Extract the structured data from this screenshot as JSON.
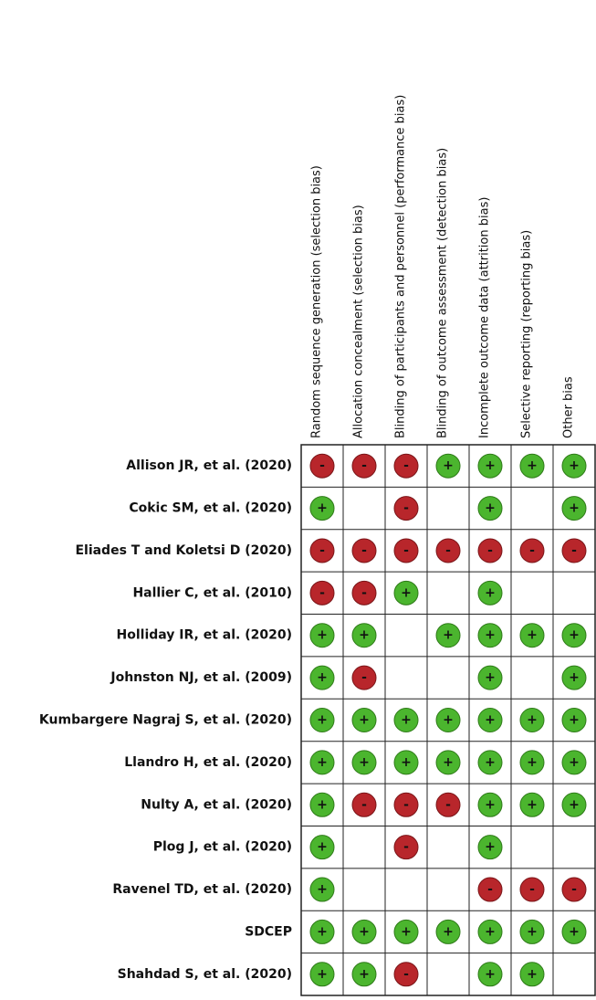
{
  "table": {
    "columns": [
      "Random sequence generation (selection bias)",
      "Allocation concealment (selection bias)",
      "Blinding of participants and personnel (performance bias)",
      "Blinding of outcome assessment (detection bias)",
      "Incomplete outcome data (attrition bias)",
      "Selective reporting (reporting bias)",
      "Other bias"
    ],
    "rows": [
      {
        "study": "Allison JR, et al. (2020)",
        "cells": [
          "-",
          "-",
          "-",
          "+",
          "+",
          "+",
          "+"
        ]
      },
      {
        "study": "Cokic SM, et al. (2020)",
        "cells": [
          "+",
          null,
          "-",
          null,
          "+",
          null,
          "+"
        ]
      },
      {
        "study": "Eliades T and Koletsi D (2020)",
        "cells": [
          "-",
          "-",
          "-",
          "-",
          "-",
          "-",
          "-"
        ]
      },
      {
        "study": "Hallier C, et al. (2010)",
        "cells": [
          "-",
          "-",
          "+",
          null,
          "+",
          null,
          null
        ]
      },
      {
        "study": "Holliday IR, et al. (2020)",
        "cells": [
          "+",
          "+",
          null,
          "+",
          "+",
          "+",
          "+"
        ]
      },
      {
        "study": "Johnston NJ, et al. (2009)",
        "cells": [
          "+",
          "-",
          null,
          null,
          "+",
          null,
          "+"
        ]
      },
      {
        "study": "Kumbargere Nagraj S, et al. (2020)",
        "cells": [
          "+",
          "+",
          "+",
          "+",
          "+",
          "+",
          "+"
        ]
      },
      {
        "study": "Llandro H, et al. (2020)",
        "cells": [
          "+",
          "+",
          "+",
          "+",
          "+",
          "+",
          "+"
        ]
      },
      {
        "study": "Nulty A, et al. (2020)",
        "cells": [
          "+",
          "-",
          "-",
          "-",
          "+",
          "+",
          "+"
        ]
      },
      {
        "study": "Plog J, et al. (2020)",
        "cells": [
          "+",
          null,
          "-",
          null,
          "+",
          null,
          null
        ]
      },
      {
        "study": "Ravenel TD, et al. (2020)",
        "cells": [
          "+",
          null,
          null,
          null,
          "-",
          "-",
          "-"
        ]
      },
      {
        "study": "SDCEP",
        "cells": [
          "+",
          "+",
          "+",
          "+",
          "+",
          "+",
          "+"
        ]
      },
      {
        "study": "Shahdad S, et al. (2020)",
        "cells": [
          "+",
          "+",
          "-",
          null,
          "+",
          "+",
          null
        ]
      }
    ]
  }
}
